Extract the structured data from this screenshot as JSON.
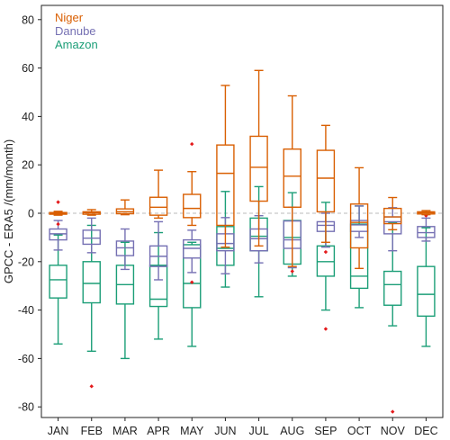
{
  "chart_data": {
    "type": "box",
    "title": "",
    "xlabel": "",
    "ylabel": "GPCC - ERA5 /(mm/month)",
    "ylim": [
      -86,
      86
    ],
    "yticks": [
      -80,
      -60,
      -40,
      -20,
      0,
      20,
      40,
      60,
      80
    ],
    "zero_line": true,
    "grid": false,
    "legend_position": "top-left",
    "categories": [
      "JAN",
      "FEB",
      "MAR",
      "APR",
      "MAY",
      "JUN",
      "JUL",
      "AUG",
      "SEP",
      "OCT",
      "NOV",
      "DEC"
    ],
    "outlier_color": "#e41a1c",
    "series": [
      {
        "name": "Niger",
        "color": "#d95f02",
        "boxes": [
          {
            "whislo": -0.8,
            "q1": -0.4,
            "med": 0.0,
            "q3": 0.3,
            "whishi": 0.8,
            "fliers": [
              4.6
            ]
          },
          {
            "whislo": -0.8,
            "q1": -0.4,
            "med": 0.2,
            "q3": 0.6,
            "whishi": 1.5,
            "fliers": []
          },
          {
            "whislo": -0.6,
            "q1": -0.2,
            "med": 0.6,
            "q3": 1.8,
            "whishi": 5.5,
            "fliers": []
          },
          {
            "whislo": -2.0,
            "q1": -0.8,
            "med": 2.5,
            "q3": 6.6,
            "whishi": 17.8,
            "fliers": []
          },
          {
            "whislo": -5.0,
            "q1": -1.8,
            "med": 2.0,
            "q3": 7.8,
            "whishi": 17.2,
            "fliers": [
              28.6
            ]
          },
          {
            "whislo": -14.0,
            "q1": -5.0,
            "med": 16.5,
            "q3": 28.2,
            "whishi": 52.8,
            "fliers": []
          },
          {
            "whislo": -13.5,
            "q1": 5.0,
            "med": 19.0,
            "q3": 31.8,
            "whishi": 59.0,
            "fliers": []
          },
          {
            "whislo": -22.0,
            "q1": 2.5,
            "med": 15.3,
            "q3": 26.5,
            "whishi": 48.5,
            "fliers": []
          },
          {
            "whislo": -12.0,
            "q1": 0.6,
            "med": 14.5,
            "q3": 26.0,
            "whishi": 36.3,
            "fliers": []
          },
          {
            "whislo": -22.8,
            "q1": -14.3,
            "med": -3.8,
            "q3": 3.8,
            "whishi": 18.8,
            "fliers": []
          },
          {
            "whislo": -6.8,
            "q1": -4.3,
            "med": -1.5,
            "q3": 2.0,
            "whishi": 6.5,
            "fliers": []
          },
          {
            "whislo": -0.6,
            "q1": -0.3,
            "med": 0.2,
            "q3": 0.6,
            "whishi": 1.1,
            "fliers": []
          }
        ]
      },
      {
        "name": "Danube",
        "color": "#7570b3",
        "boxes": [
          {
            "whislo": -15.2,
            "q1": -11.0,
            "med": -8.5,
            "q3": -6.5,
            "whishi": -3.0,
            "fliers": [
              -4.5
            ]
          },
          {
            "whislo": -16.3,
            "q1": -12.8,
            "med": -10.3,
            "q3": -7.0,
            "whishi": -2.0,
            "fliers": []
          },
          {
            "whislo": -23.2,
            "q1": -17.5,
            "med": -14.3,
            "q3": -11.5,
            "whishi": -6.5,
            "fliers": []
          },
          {
            "whislo": -27.5,
            "q1": -22.0,
            "med": -17.8,
            "q3": -13.5,
            "whishi": -3.5,
            "fliers": []
          },
          {
            "whislo": -24.5,
            "q1": -18.5,
            "med": -14.5,
            "q3": -11.0,
            "whishi": -7.0,
            "fliers": []
          },
          {
            "whislo": -25.0,
            "q1": -15.5,
            "med": -12.5,
            "q3": -8.5,
            "whishi": -1.8,
            "fliers": []
          },
          {
            "whislo": -20.5,
            "q1": -15.5,
            "med": -10.5,
            "q3": -6.5,
            "whishi": -1.0,
            "fliers": []
          },
          {
            "whislo": -22.5,
            "q1": -14.5,
            "med": -11.0,
            "q3": -3.2,
            "whishi": 2.5,
            "fliers": []
          },
          {
            "whislo": -14.0,
            "q1": -7.5,
            "med": -5.0,
            "q3": -3.5,
            "whishi": 0.0,
            "fliers": []
          },
          {
            "whislo": -10.0,
            "q1": -7.5,
            "med": -4.8,
            "q3": -3.0,
            "whishi": 3.0,
            "fliers": []
          },
          {
            "whislo": -15.5,
            "q1": -8.5,
            "med": -3.5,
            "q3": -1.5,
            "whishi": 2.3,
            "fliers": []
          },
          {
            "whislo": -11.5,
            "q1": -10.0,
            "med": -8.0,
            "q3": -5.5,
            "whishi": -2.0,
            "fliers": []
          }
        ]
      },
      {
        "name": "Amazon",
        "color": "#1b9e77",
        "boxes": [
          {
            "whislo": -54.0,
            "q1": -35.0,
            "med": -27.5,
            "q3": -21.5,
            "whishi": -9.0,
            "fliers": []
          },
          {
            "whislo": -57.0,
            "q1": -37.0,
            "med": -29.0,
            "q3": -20.0,
            "whishi": -5.0,
            "fliers": [
              -71.5
            ]
          },
          {
            "whislo": -60.0,
            "q1": -37.5,
            "med": -29.5,
            "q3": -21.5,
            "whishi": -12.0,
            "fliers": []
          },
          {
            "whislo": -52.0,
            "q1": -38.5,
            "med": -35.5,
            "q3": -21.5,
            "whishi": -8.0,
            "fliers": []
          },
          {
            "whislo": -55.0,
            "q1": -39.0,
            "med": -29.0,
            "q3": -13.0,
            "whishi": -12.0,
            "fliers": [
              -28.5
            ]
          },
          {
            "whislo": -30.5,
            "q1": -21.5,
            "med": -14.5,
            "q3": -5.5,
            "whishi": 9.0,
            "fliers": []
          },
          {
            "whislo": -34.5,
            "q1": -15.5,
            "med": -9.5,
            "q3": -2.0,
            "whishi": 11.0,
            "fliers": []
          },
          {
            "whislo": -26.0,
            "q1": -21.0,
            "med": -10.0,
            "q3": -3.0,
            "whishi": 8.5,
            "fliers": [
              -24.0
            ]
          },
          {
            "whislo": -40.0,
            "q1": -26.0,
            "med": -20.0,
            "q3": -13.5,
            "whishi": 4.5,
            "fliers": [
              -47.8,
              -16.0
            ]
          },
          {
            "whislo": -39.0,
            "q1": -31.0,
            "med": -26.0,
            "q3": -4.5,
            "whishi": 3.0,
            "fliers": []
          },
          {
            "whislo": -46.5,
            "q1": -38.0,
            "med": -29.5,
            "q3": -24.0,
            "whishi": -4.0,
            "fliers": [
              -82.0
            ]
          },
          {
            "whislo": -55.0,
            "q1": -42.5,
            "med": -33.5,
            "q3": -22.0,
            "whishi": -6.0,
            "fliers": [
              -1.0
            ]
          }
        ]
      }
    ]
  }
}
